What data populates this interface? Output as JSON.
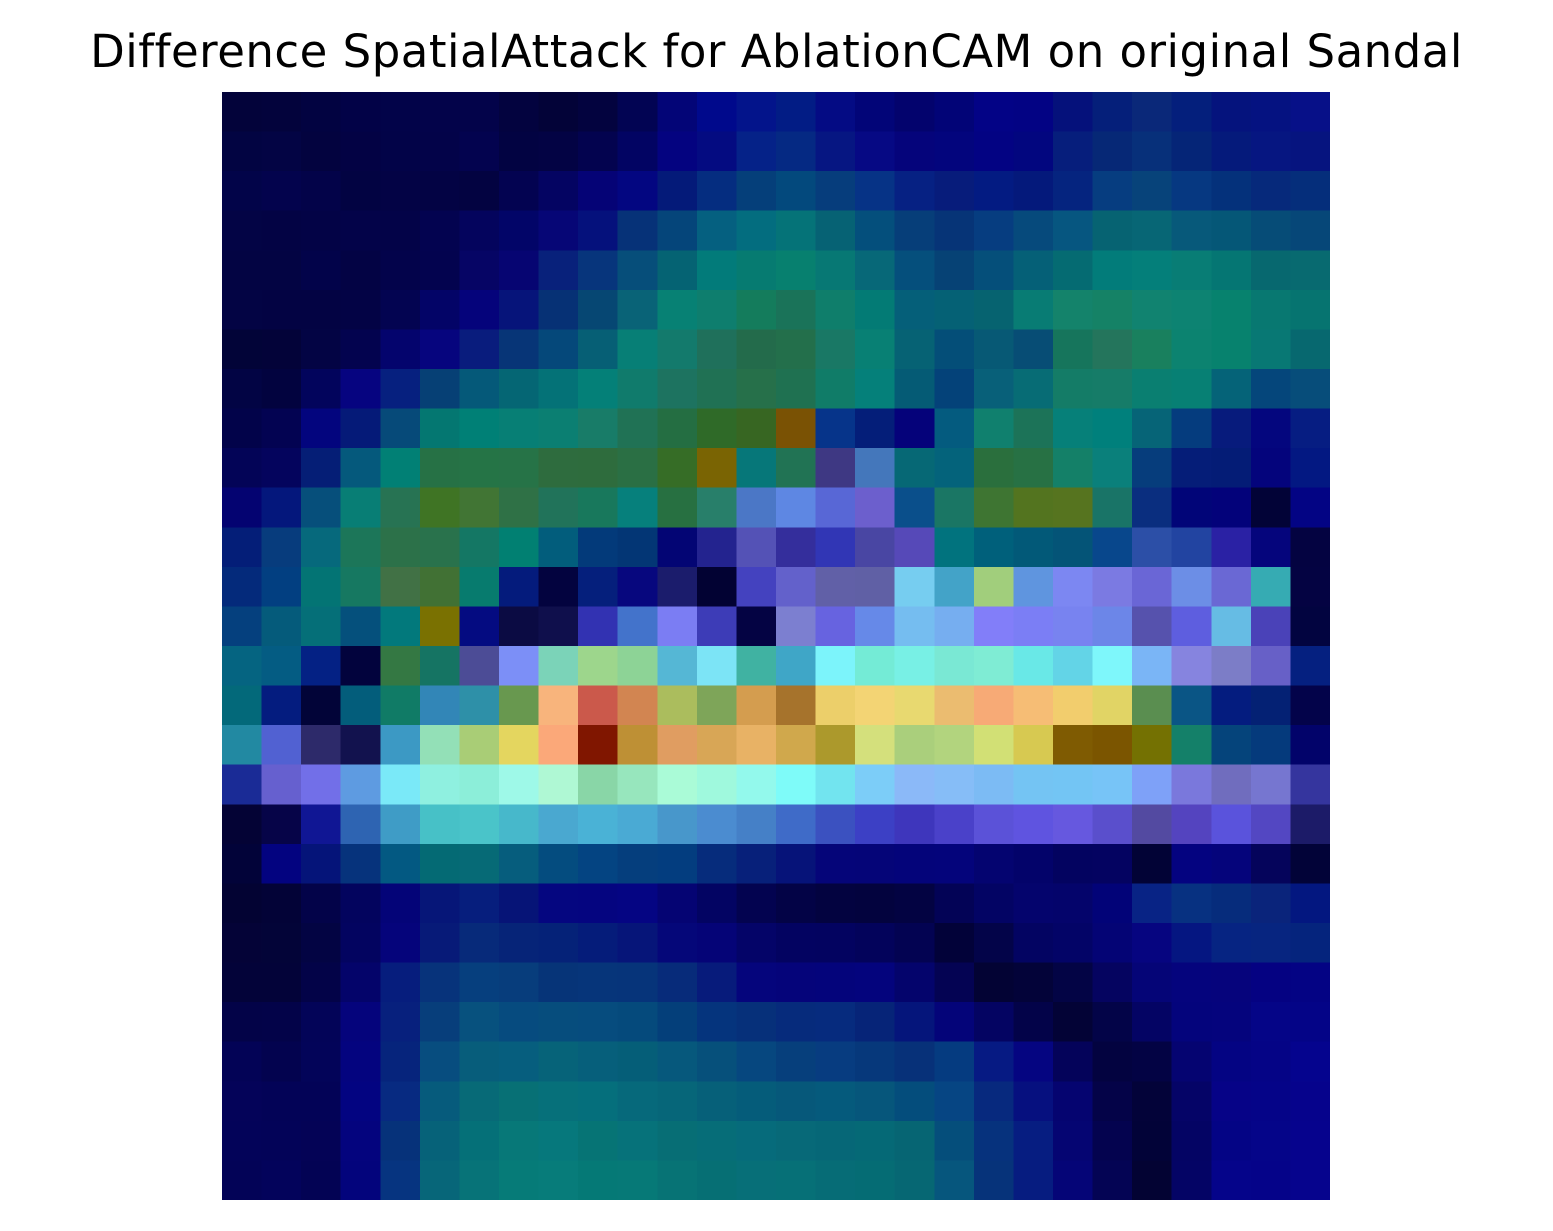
{
  "chart_data": {
    "type": "heatmap",
    "title": "Difference SpatialAttack for AblationCAM on original Sandal",
    "xlabel": "",
    "ylabel": "",
    "axes_visible": false,
    "grid": false,
    "legend": "none",
    "colormap": "jet-over-image",
    "rows": 28,
    "cols": 28,
    "cells": [
      [
        "#03033a",
        "#03033c",
        "#020341",
        "#020247",
        "#020349",
        "#03034a",
        "#03034a",
        "#03033f",
        "#030338",
        "#03033f",
        "#020453",
        "#030577",
        "#00098c",
        "#03148b",
        "#021c85",
        "#040b84",
        "#020578",
        "#03036d",
        "#020477",
        "#030386",
        "#030384",
        "#05117b",
        "#051f7a",
        "#0a2879",
        "#041f7c",
        "#05137d",
        "#051281",
        "#071088"
      ],
      [
        "#020442",
        "#030444",
        "#03033f",
        "#030244",
        "#020348",
        "#030349",
        "#03034f",
        "#020342",
        "#030344",
        "#03034f",
        "#020463",
        "#040380",
        "#040b81",
        "#052288",
        "#052983",
        "#061682",
        "#060984",
        "#05047b",
        "#03057d",
        "#030383",
        "#02067f",
        "#061e7c",
        "#062876",
        "#07307a",
        "#052577",
        "#051a7b",
        "#061681",
        "#06147f"
      ],
      [
        "#020449",
        "#03034d",
        "#030349",
        "#020342",
        "#030345",
        "#030344",
        "#030341",
        "#030351",
        "#040462",
        "#050376",
        "#030681",
        "#041a79",
        "#052d80",
        "#053f7a",
        "#03497d",
        "#063d7c",
        "#063386",
        "#062183",
        "#071c7b",
        "#031b82",
        "#04197b",
        "#05247f",
        "#063d80",
        "#07437a",
        "#063881",
        "#04317b",
        "#06297b",
        "#052e7b"
      ],
      [
        "#030445",
        "#030344",
        "#030346",
        "#030349",
        "#030348",
        "#030350",
        "#04045d",
        "#020568",
        "#060676",
        "#05117c",
        "#063278",
        "#05457a",
        "#056080",
        "#036d7f",
        "#057378",
        "#066274",
        "#044f7c",
        "#063e79",
        "#063477",
        "#063d80",
        "#064a7c",
        "#065680",
        "#066372",
        "#076675",
        "#07597a",
        "#055777",
        "#064c77",
        "#064778"
      ],
      [
        "#030443",
        "#030443",
        "#02034a",
        "#030344",
        "#03034b",
        "#03034f",
        "#060565",
        "#060572",
        "#08217b",
        "#07357c",
        "#064e7a",
        "#056373",
        "#027b7a",
        "#067b71",
        "#07806f",
        "#077874",
        "#076878",
        "#054f7c",
        "#064275",
        "#054f7a",
        "#056077",
        "#056b72",
        "#027c7a",
        "#047f7a",
        "#087d75",
        "#057673",
        "#07686f",
        "#086a70"
      ],
      [
        "#030444",
        "#030343",
        "#030343",
        "#030345",
        "#030451",
        "#030467",
        "#05037b",
        "#06147a",
        "#063175",
        "#064773",
        "#096377",
        "#078174",
        "#0e7e6e",
        "#147c5c",
        "#1a7359",
        "#0f7e6b",
        "#037b75",
        "#055f79",
        "#056175",
        "#066370",
        "#087c74",
        "#14836b",
        "#158266",
        "#118370",
        "#0d8372",
        "#07826e",
        "#087871",
        "#067470"
      ],
      [
        "#020438",
        "#030339",
        "#030444",
        "#03034f",
        "#04046d",
        "#06057e",
        "#091c7d",
        "#073577",
        "#05487a",
        "#065f75",
        "#077f76",
        "#137a6c",
        "#1f705b",
        "#236b4b",
        "#236f4b",
        "#197865",
        "#088074",
        "#066274",
        "#044e78",
        "#075975",
        "#074d75",
        "#16755c",
        "#24755c",
        "#19805e",
        "#0c8370",
        "#07826e",
        "#087874",
        "#07686f"
      ],
      [
        "#020444",
        "#02033f",
        "#02045c",
        "#060480",
        "#06207f",
        "#064075",
        "#055979",
        "#056674",
        "#047277",
        "#048078",
        "#107b6c",
        "#1d7360",
        "#207154",
        "#26704a",
        "#1f7151",
        "#107c68",
        "#05807a",
        "#055b75",
        "#044279",
        "#086079",
        "#076c75",
        "#147c67",
        "#167c68",
        "#0a7f71",
        "#078074",
        "#056378",
        "#05467b",
        "#074d7a"
      ],
      [
        "#02034a",
        "#030352",
        "#03057e",
        "#051a78",
        "#064a79",
        "#047771",
        "#008076",
        "#077f75",
        "#0b7f72",
        "#187c68",
        "#207255",
        "#246e42",
        "#2f6a28",
        "#376622",
        "#7a5204",
        "#06348a",
        "#041e79",
        "#05027a",
        "#045b7f",
        "#10806e",
        "#1c7358",
        "#068079",
        "#00807c",
        "#066477",
        "#053c7e",
        "#071b7c",
        "#04067e",
        "#061d82"
      ],
      [
        "#030457",
        "#04045d",
        "#051e76",
        "#05597c",
        "#018075",
        "#267145",
        "#257446",
        "#267347",
        "#2e6c3e",
        "#2e6c3d",
        "#2a6f44",
        "#366d26",
        "#7a6403",
        "#067779",
        "#217354",
        "#3e3883",
        "#4477bb",
        "#066875",
        "#04637b",
        "#2a6f3d",
        "#277144",
        "#148068",
        "#0a807b",
        "#063d7c",
        "#051d78",
        "#041c76",
        "#04047c",
        "#031882"
      ],
      [
        "#040371",
        "#04177c",
        "#064f7b",
        "#087e75",
        "#277353",
        "#3f7424",
        "#417534",
        "#2f7146",
        "#21735a",
        "#18785c",
        "#06807c",
        "#277041",
        "#287f6a",
        "#4b77c6",
        "#5e87e3",
        "#5867d6",
        "#6c5fcd",
        "#0a4f8b",
        "#1a7664",
        "#3e7532",
        "#53741f",
        "#56741f",
        "#197467",
        "#0a2e7f",
        "#010578",
        "#03027a",
        "#020337",
        "#030484"
      ],
      [
        "#041e78",
        "#073c7d",
        "#06697c",
        "#1c7659",
        "#2c7149",
        "#29724c",
        "#147764",
        "#018072",
        "#025d7c",
        "#033a7a",
        "#033675",
        "#030574",
        "#23238f",
        "#5452b6",
        "#342e9c",
        "#3136b5",
        "#4946a3",
        "#5649b8",
        "#01737e",
        "#00607b",
        "#025978",
        "#045477",
        "#08478c",
        "#2c4fa7",
        "#2244a1",
        "#2a21a4",
        "#05057c",
        "#040341"
      ],
      [
        "#042a7b",
        "#023f81",
        "#037474",
        "#167861",
        "#417145",
        "#417134",
        "#077b6e",
        "#041b7c",
        "#03033f",
        "#051f7c",
        "#07077e",
        "#1b1c6c",
        "#020233",
        "#4442bf",
        "#6361cb",
        "#6160a7",
        "#6060a5",
        "#76cdf0",
        "#43a3c8",
        "#a1ce7c",
        "#5f95df",
        "#7c87f2",
        "#7b7ae2",
        "#6a66d6",
        "#6c8ee6",
        "#6a68d4",
        "#36abb3",
        "#040342"
      ],
      [
        "#05407e",
        "#055b7b",
        "#056f78",
        "#05507c",
        "#02797c",
        "#7a7101",
        "#040b81",
        "#0b0b43",
        "#0f0f4c",
        "#3232b2",
        "#4373cb",
        "#7b7df3",
        "#3d3cb7",
        "#040343",
        "#7c7fd0",
        "#6763e0",
        "#6689e8",
        "#75bdf0",
        "#76aef0",
        "#827ef9",
        "#7b7ef5",
        "#7883f0",
        "#6c86e8",
        "#5652ad",
        "#5e5edf",
        "#66bce4",
        "#4a42b8",
        "#020440"
      ],
      [
        "#056481",
        "#045c83",
        "#042184",
        "#02033d",
        "#347843",
        "#157463",
        "#4c4c96",
        "#7c8ff7",
        "#7bd3b8",
        "#9dd68c",
        "#8dd396",
        "#55b7d5",
        "#7ce4f6",
        "#40b2a2",
        "#3fa6c7",
        "#7cf4fb",
        "#74ebd6",
        "#78f0e5",
        "#7ae8d4",
        "#7fecd4",
        "#69e8e7",
        "#63d4e7",
        "#7ef7fb",
        "#7ab5f6",
        "#8684df",
        "#7c7dc7",
        "#6760c7",
        "#052080"
      ],
      [
        "#03697a",
        "#041c7f",
        "#020438",
        "#035d7b",
        "#107b66",
        "#3286b7",
        "#2e90a8",
        "#68984f",
        "#f8b47c",
        "#cb594b",
        "#d28551",
        "#abbd5d",
        "#7ea559",
        "#d49d4f",
        "#a6732c",
        "#eccf6a",
        "#f3d474",
        "#e8d970",
        "#ebbc70",
        "#f7aa76",
        "#f6bd75",
        "#f2cd6d",
        "#e1d465",
        "#5a8e50",
        "#0a5585",
        "#041c7f",
        "#042174",
        "#03034a"
      ],
      [
        "#2289a2",
        "#5161d2",
        "#2d2a6a",
        "#12124e",
        "#3c99c4",
        "#93e0b7",
        "#a9cd76",
        "#e4d65f",
        "#fba879",
        "#801600",
        "#be9035",
        "#e09d61",
        "#d8a656",
        "#e8b265",
        "#d0a84c",
        "#ac992c",
        "#d4e07c",
        "#aacf7c",
        "#b2d47e",
        "#d2e075",
        "#d7c951",
        "#7f5b02",
        "#7b5500",
        "#747102",
        "#148069",
        "#05447b",
        "#053a7c",
        "#02036a"
      ],
      [
        "#1a2b96",
        "#6660cf",
        "#726fe8",
        "#5e9be1",
        "#7ae9f8",
        "#8ff0e0",
        "#8ceed9",
        "#9ef9e8",
        "#aff8d4",
        "#89d6a7",
        "#97e6bd",
        "#aafbd7",
        "#9ff9dd",
        "#93f9ec",
        "#7efbf9",
        "#72e4ef",
        "#7ccdf8",
        "#8bb9f8",
        "#86bdf7",
        "#7cbbf4",
        "#74c4f3",
        "#73c5f4",
        "#77c4f7",
        "#7ea1f8",
        "#7a78dc",
        "#706dbe",
        "#7676d0",
        "#35359e"
      ],
      [
        "#040335",
        "#060448",
        "#101694",
        "#2e64b2",
        "#3f9cc6",
        "#47c1c7",
        "#4ac4c9",
        "#47b8cb",
        "#4aa8d0",
        "#4ab2d6",
        "#4aaad4",
        "#4897cb",
        "#4b8cd0",
        "#4580c7",
        "#3f6bc8",
        "#3b51c0",
        "#3c40c5",
        "#3e36bc",
        "#4a41c9",
        "#5b52d8",
        "#5f54e0",
        "#6658df",
        "#5a4fcc",
        "#534aa1",
        "#5444bf",
        "#5a53dc",
        "#5347c2",
        "#1c1b68"
      ],
      [
        "#020339",
        "#030380",
        "#051479",
        "#06337c",
        "#035982",
        "#046a74",
        "#066a76",
        "#065d7d",
        "#044c7f",
        "#044482",
        "#053e7d",
        "#033d7f",
        "#062c7c",
        "#07207a",
        "#061379",
        "#050579",
        "#050578",
        "#04047a",
        "#04047b",
        "#040470",
        "#03036a",
        "#030360",
        "#040361",
        "#020336",
        "#040380",
        "#05047b",
        "#05045b",
        "#020338"
      ],
      [
        "#030333",
        "#030337",
        "#030349",
        "#03045e",
        "#040478",
        "#061678",
        "#061e7d",
        "#061477",
        "#050680",
        "#050580",
        "#050583",
        "#050473",
        "#030463",
        "#030350",
        "#030346",
        "#030340",
        "#03033e",
        "#030342",
        "#030356",
        "#030464",
        "#04046d",
        "#04046b",
        "#020378",
        "#082385",
        "#073181",
        "#062c7c",
        "#0a247b",
        "#031780"
      ],
      [
        "#040337",
        "#030438",
        "#030443",
        "#030460",
        "#05047b",
        "#071a78",
        "#072a7a",
        "#062478",
        "#052278",
        "#051c7a",
        "#061579",
        "#050779",
        "#050477",
        "#040468",
        "#030361",
        "#030360",
        "#03035b",
        "#030352",
        "#020239",
        "#030449",
        "#030462",
        "#030467",
        "#040475",
        "#060580",
        "#051681",
        "#062482",
        "#072580",
        "#05247d"
      ],
      [
        "#030339",
        "#030339",
        "#030348",
        "#04046a",
        "#061d7d",
        "#07337b",
        "#063f7e",
        "#073d7c",
        "#063478",
        "#06357a",
        "#06347a",
        "#072b7a",
        "#071b7b",
        "#05057c",
        "#05047a",
        "#04047b",
        "#04047d",
        "#04046c",
        "#040353",
        "#030334",
        "#030339",
        "#030445",
        "#050460",
        "#050577",
        "#05047d",
        "#06047c",
        "#050282",
        "#040384"
      ],
      [
        "#030348",
        "#030349",
        "#030458",
        "#05047c",
        "#07207d",
        "#073e7b",
        "#07517e",
        "#064b7f",
        "#064d7d",
        "#064c7e",
        "#054a7c",
        "#043f7a",
        "#05347d",
        "#06307a",
        "#062b7c",
        "#062b7e",
        "#062478",
        "#05157b",
        "#040479",
        "#040462",
        "#030349",
        "#030336",
        "#030448",
        "#040464",
        "#04047c",
        "#05047d",
        "#050587",
        "#040487"
      ],
      [
        "#030356",
        "#03034f",
        "#030459",
        "#04047f",
        "#06247c",
        "#074d7f",
        "#075d7b",
        "#065e7e",
        "#066379",
        "#065f7b",
        "#055e78",
        "#06587c",
        "#06507b",
        "#06477f",
        "#063f7c",
        "#073c80",
        "#06387b",
        "#073179",
        "#053b80",
        "#061a83",
        "#050581",
        "#04035a",
        "#030340",
        "#030344",
        "#050471",
        "#040483",
        "#050486",
        "#05048e"
      ],
      [
        "#040359",
        "#030357",
        "#030357",
        "#030481",
        "#072a81",
        "#065b7c",
        "#076a77",
        "#077075",
        "#06707a",
        "#056f7c",
        "#06697b",
        "#066679",
        "#066079",
        "#055c7a",
        "#06587a",
        "#055a7c",
        "#06567b",
        "#044d7c",
        "#064583",
        "#07297e",
        "#06107f",
        "#050470",
        "#040348",
        "#030339",
        "#050467",
        "#060387",
        "#050488",
        "#06038c"
      ],
      [
        "#030359",
        "#030358",
        "#040356",
        "#04047e",
        "#06327a",
        "#066279",
        "#057078",
        "#077878",
        "#06787c",
        "#067475",
        "#06727a",
        "#076e75",
        "#066d78",
        "#066b7b",
        "#076978",
        "#066777",
        "#056976",
        "#066573",
        "#054e7b",
        "#06327d",
        "#061d81",
        "#050572",
        "#04034f",
        "#020338",
        "#040464",
        "#040485",
        "#050589",
        "#06038d"
      ],
      [
        "#030357",
        "#03035b",
        "#030354",
        "#03047c",
        "#063480",
        "#076679",
        "#077378",
        "#067b78",
        "#077c7a",
        "#057976",
        "#067977",
        "#077375",
        "#066f74",
        "#076f78",
        "#067077",
        "#066c76",
        "#056c74",
        "#066773",
        "#06567d",
        "#06337a",
        "#061c80",
        "#050577",
        "#040454",
        "#030333",
        "#040465",
        "#05048a",
        "#050389",
        "#06048d"
      ]
    ]
  }
}
